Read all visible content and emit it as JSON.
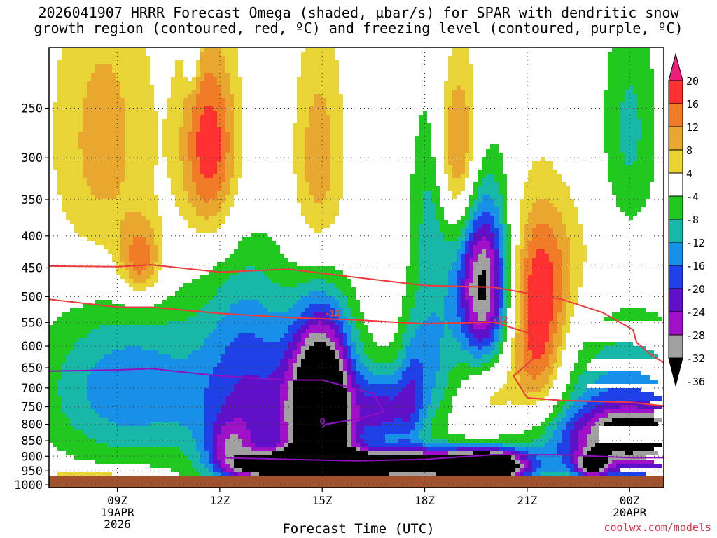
{
  "chart_data": {
    "type": "contour",
    "title_line1": "2026041907 HRRR Forecast Omega (shaded, µbar/s) for SPAR with dendritic snow",
    "title_line2": "growth region (contoured, red, ºC) and freezing level (contoured, purple, ºC)",
    "xlabel": "Forecast Time (UTC)",
    "credit": "coolwx.com/models",
    "y_ticks": [
      250,
      300,
      350,
      400,
      450,
      500,
      550,
      600,
      650,
      700,
      750,
      800,
      850,
      900,
      950,
      1000
    ],
    "y_range_hPa": [
      200,
      1010
    ],
    "x_range_hours": [
      7,
      25
    ],
    "x_ticks": [
      {
        "hour": 9,
        "lines": [
          "09Z",
          "19APR",
          "2026"
        ]
      },
      {
        "hour": 12,
        "lines": [
          "12Z"
        ]
      },
      {
        "hour": 15,
        "lines": [
          "15Z"
        ]
      },
      {
        "hour": 18,
        "lines": [
          "18Z"
        ]
      },
      {
        "hour": 21,
        "lines": [
          "21Z"
        ]
      },
      {
        "hour": 24,
        "lines": [
          "00Z",
          "20APR"
        ]
      }
    ],
    "colorbar": {
      "labels": [
        "20",
        "16",
        "12",
        "8",
        "4",
        "-4",
        "-8",
        "-12",
        "-16",
        "-20",
        "-24",
        "-28",
        "-32",
        "-36"
      ],
      "colors": [
        "#ee1c7a",
        "#ff3030",
        "#f07c28",
        "#e8a830",
        "#e9d436",
        "#ffffff",
        "#20c820",
        "#18b8a8",
        "#1890e8",
        "#2040e8",
        "#6010c8",
        "#a010c8",
        "#a0a0a0",
        "#000000"
      ]
    },
    "contour_labels": {
      "dgz": "-12",
      "freezing": "0"
    },
    "dgz_lines": [
      {
        "name": "-12C",
        "points": [
          [
            7,
            447
          ],
          [
            9,
            448
          ],
          [
            10,
            445
          ],
          [
            12,
            457
          ],
          [
            14,
            452
          ],
          [
            16,
            466
          ],
          [
            18,
            480
          ],
          [
            20,
            483
          ],
          [
            22,
            505
          ],
          [
            23.2,
            530
          ],
          [
            24.1,
            565
          ],
          [
            24.2,
            592
          ],
          [
            24.6,
            618
          ],
          [
            25,
            638
          ]
        ]
      },
      {
        "name": "-18C",
        "points": [
          [
            7,
            505
          ],
          [
            9,
            520
          ],
          [
            10,
            520
          ],
          [
            12,
            532
          ],
          [
            14,
            540
          ],
          [
            16,
            545
          ],
          [
            18,
            553
          ],
          [
            20,
            549
          ],
          [
            21.2,
            575
          ],
          [
            21.3,
            620
          ],
          [
            20.6,
            670
          ],
          [
            21.0,
            726
          ],
          [
            22,
            733
          ],
          [
            24,
            738
          ],
          [
            25,
            748
          ]
        ]
      }
    ],
    "freezing_lines": [
      {
        "name": "0C-upper",
        "points": [
          [
            7,
            658
          ],
          [
            9,
            655
          ],
          [
            10,
            652
          ],
          [
            12,
            670
          ],
          [
            14,
            680
          ],
          [
            15,
            680
          ],
          [
            16.5,
            715
          ],
          [
            16.8,
            765
          ],
          [
            16,
            785
          ],
          [
            15.1,
            800
          ],
          [
            15,
            810
          ]
        ]
      },
      {
        "name": "0C-lower",
        "points": [
          [
            12,
            905
          ],
          [
            14,
            910
          ],
          [
            16,
            915
          ],
          [
            18,
            910
          ],
          [
            20,
            895
          ],
          [
            22,
            895
          ],
          [
            24,
            905
          ],
          [
            25,
            905
          ]
        ]
      }
    ]
  }
}
